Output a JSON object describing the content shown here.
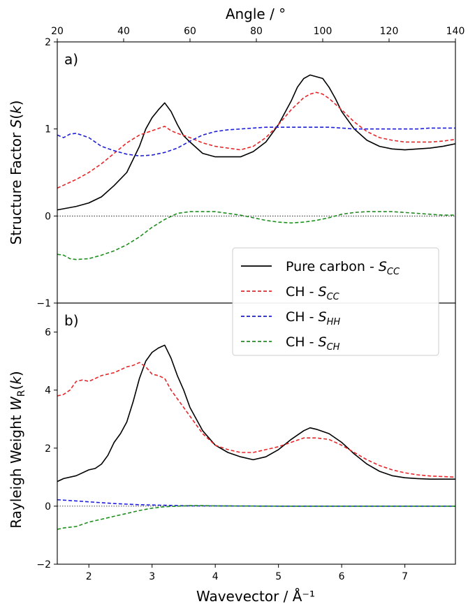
{
  "figure": {
    "top_axis_label": "Angle / °",
    "x_axis_label": "Wavevector / Å⁻¹",
    "x_ticks": [
      "2",
      "3",
      "4",
      "5",
      "6",
      "7"
    ],
    "top_ticks": [
      "20",
      "40",
      "60",
      "80",
      "100",
      "120",
      "140"
    ]
  },
  "legend": [
    {
      "name": "Pure carbon - ",
      "sub_main": "S",
      "sub": "CC",
      "color": "#000000",
      "dash": "solid"
    },
    {
      "name": "CH - ",
      "sub_main": "S",
      "sub": "CC",
      "color": "#e8262a",
      "dash": "dashed"
    },
    {
      "name": "CH - ",
      "sub_main": "S",
      "sub": "HH",
      "color": "#1f1fd6",
      "dash": "dashed"
    },
    {
      "name": "CH - ",
      "sub_main": "S",
      "sub": "CH",
      "color": "#1e8f1e",
      "dash": "dashed"
    }
  ],
  "chart_data": [
    {
      "type": "line",
      "panel_label": "a)",
      "ylabel": "Structure Factor S(k)",
      "xlim": [
        1.5,
        7.8
      ],
      "ylim": [
        -1,
        2
      ],
      "yticks": [
        "−1",
        "0",
        "1",
        "2"
      ],
      "reference_line": 0,
      "series": [
        {
          "name": "Pure carbon - S_CC",
          "color": "#000000",
          "dash": "solid",
          "x": [
            1.5,
            1.8,
            2.0,
            2.2,
            2.4,
            2.6,
            2.8,
            2.9,
            3.0,
            3.1,
            3.2,
            3.3,
            3.4,
            3.5,
            3.6,
            3.8,
            4.0,
            4.2,
            4.4,
            4.6,
            4.8,
            5.0,
            5.2,
            5.3,
            5.4,
            5.5,
            5.6,
            5.7,
            5.8,
            5.9,
            6.0,
            6.2,
            6.4,
            6.6,
            6.8,
            7.0,
            7.2,
            7.4,
            7.6,
            7.8
          ],
          "y": [
            0.07,
            0.11,
            0.15,
            0.22,
            0.35,
            0.5,
            0.8,
            1.0,
            1.13,
            1.22,
            1.3,
            1.2,
            1.05,
            0.92,
            0.85,
            0.72,
            0.68,
            0.68,
            0.68,
            0.74,
            0.85,
            1.05,
            1.32,
            1.48,
            1.58,
            1.62,
            1.6,
            1.58,
            1.48,
            1.35,
            1.2,
            1.0,
            0.87,
            0.8,
            0.77,
            0.76,
            0.77,
            0.78,
            0.8,
            0.83
          ]
        },
        {
          "name": "CH - S_CC",
          "color": "#e8262a",
          "dash": "dashed",
          "x": [
            1.5,
            1.8,
            2.0,
            2.2,
            2.4,
            2.6,
            2.8,
            3.0,
            3.2,
            3.3,
            3.4,
            3.6,
            3.8,
            4.0,
            4.2,
            4.4,
            4.6,
            4.8,
            5.0,
            5.2,
            5.4,
            5.5,
            5.6,
            5.7,
            5.8,
            6.0,
            6.2,
            6.4,
            6.6,
            6.8,
            7.0,
            7.2,
            7.4,
            7.6,
            7.8
          ],
          "y": [
            0.32,
            0.42,
            0.5,
            0.6,
            0.72,
            0.84,
            0.93,
            0.98,
            1.03,
            0.98,
            0.95,
            0.9,
            0.84,
            0.8,
            0.78,
            0.76,
            0.8,
            0.9,
            1.05,
            1.22,
            1.36,
            1.4,
            1.42,
            1.4,
            1.35,
            1.22,
            1.08,
            0.97,
            0.9,
            0.87,
            0.85,
            0.85,
            0.85,
            0.86,
            0.88
          ]
        },
        {
          "name": "CH - S_HH",
          "color": "#1f1fd6",
          "dash": "dashed",
          "x": [
            1.5,
            1.6,
            1.7,
            1.8,
            2.0,
            2.2,
            2.4,
            2.6,
            2.8,
            3.0,
            3.2,
            3.4,
            3.6,
            3.8,
            4.0,
            4.2,
            4.4,
            4.6,
            4.8,
            5.0,
            5.2,
            5.4,
            5.6,
            5.8,
            6.0,
            6.2,
            6.4,
            6.6,
            6.8,
            7.0,
            7.2,
            7.4,
            7.6,
            7.8
          ],
          "y": [
            0.93,
            0.9,
            0.94,
            0.95,
            0.9,
            0.8,
            0.75,
            0.71,
            0.69,
            0.7,
            0.73,
            0.78,
            0.86,
            0.93,
            0.97,
            0.99,
            1.0,
            1.01,
            1.02,
            1.02,
            1.02,
            1.02,
            1.02,
            1.02,
            1.01,
            1.0,
            1.0,
            1.0,
            1.0,
            1.0,
            1.0,
            1.01,
            1.01,
            1.01
          ]
        },
        {
          "name": "CH - S_CH",
          "color": "#1e8f1e",
          "dash": "dashed",
          "x": [
            1.5,
            1.6,
            1.7,
            1.8,
            2.0,
            2.2,
            2.4,
            2.6,
            2.8,
            3.0,
            3.2,
            3.4,
            3.6,
            3.8,
            4.0,
            4.2,
            4.4,
            4.6,
            4.8,
            5.0,
            5.2,
            5.4,
            5.6,
            5.8,
            6.0,
            6.2,
            6.4,
            6.6,
            6.8,
            7.0,
            7.2,
            7.4,
            7.6,
            7.8
          ],
          "y": [
            -0.44,
            -0.45,
            -0.49,
            -0.5,
            -0.49,
            -0.45,
            -0.4,
            -0.33,
            -0.24,
            -0.13,
            -0.04,
            0.03,
            0.05,
            0.05,
            0.05,
            0.03,
            0.01,
            -0.02,
            -0.05,
            -0.07,
            -0.08,
            -0.07,
            -0.05,
            -0.02,
            0.02,
            0.04,
            0.05,
            0.05,
            0.05,
            0.04,
            0.03,
            0.02,
            0.01,
            0.01
          ]
        }
      ]
    },
    {
      "type": "line",
      "panel_label": "b)",
      "ylabel": "Rayleigh Weight W_R(k)",
      "xlim": [
        1.5,
        7.8
      ],
      "ylim": [
        -2,
        7
      ],
      "yticks": [
        "−2",
        "0",
        "2",
        "4",
        "6"
      ],
      "reference_line": 0,
      "series": [
        {
          "name": "Pure carbon - S_CC",
          "color": "#000000",
          "dash": "solid",
          "x": [
            1.5,
            1.6,
            1.8,
            2.0,
            2.1,
            2.2,
            2.3,
            2.4,
            2.5,
            2.6,
            2.7,
            2.8,
            2.9,
            3.0,
            3.1,
            3.2,
            3.3,
            3.4,
            3.5,
            3.6,
            3.8,
            4.0,
            4.2,
            4.4,
            4.6,
            4.8,
            5.0,
            5.2,
            5.4,
            5.5,
            5.6,
            5.8,
            6.0,
            6.2,
            6.4,
            6.6,
            6.8,
            7.0,
            7.2,
            7.4,
            7.6,
            7.8
          ],
          "y": [
            0.85,
            0.95,
            1.05,
            1.25,
            1.3,
            1.45,
            1.75,
            2.2,
            2.5,
            2.9,
            3.6,
            4.4,
            5.0,
            5.3,
            5.45,
            5.55,
            5.1,
            4.5,
            4.0,
            3.4,
            2.6,
            2.1,
            1.85,
            1.7,
            1.6,
            1.7,
            1.95,
            2.3,
            2.6,
            2.7,
            2.65,
            2.5,
            2.2,
            1.8,
            1.45,
            1.2,
            1.05,
            0.98,
            0.95,
            0.93,
            0.93,
            0.93
          ]
        },
        {
          "name": "CH - S_CC",
          "color": "#e8262a",
          "dash": "dashed",
          "x": [
            1.5,
            1.6,
            1.7,
            1.8,
            1.9,
            2.0,
            2.2,
            2.4,
            2.6,
            2.7,
            2.8,
            2.9,
            3.0,
            3.1,
            3.2,
            3.3,
            3.4,
            3.6,
            3.8,
            4.0,
            4.2,
            4.4,
            4.6,
            4.8,
            5.0,
            5.2,
            5.4,
            5.6,
            5.8,
            6.0,
            6.2,
            6.4,
            6.6,
            6.8,
            7.0,
            7.2,
            7.4,
            7.6,
            7.8
          ],
          "y": [
            3.8,
            3.85,
            4.0,
            4.3,
            4.35,
            4.3,
            4.5,
            4.6,
            4.8,
            4.85,
            4.95,
            4.8,
            4.55,
            4.5,
            4.4,
            4.0,
            3.7,
            3.1,
            2.5,
            2.1,
            1.95,
            1.85,
            1.85,
            1.95,
            2.05,
            2.2,
            2.35,
            2.35,
            2.3,
            2.1,
            1.85,
            1.6,
            1.4,
            1.25,
            1.15,
            1.08,
            1.04,
            1.02,
            1.0
          ]
        },
        {
          "name": "CH - S_HH",
          "color": "#1f1fd6",
          "dash": "dashed",
          "x": [
            1.5,
            1.8,
            2.0,
            2.2,
            2.4,
            2.6,
            2.8,
            3.0,
            3.2,
            3.4,
            3.6,
            4.0,
            5.0,
            6.0,
            7.0,
            7.8
          ],
          "y": [
            0.22,
            0.18,
            0.15,
            0.12,
            0.09,
            0.07,
            0.05,
            0.04,
            0.03,
            0.02,
            0.01,
            0.01,
            0.0,
            0.0,
            0.0,
            0.0
          ]
        },
        {
          "name": "CH - S_CH",
          "color": "#1e8f1e",
          "dash": "dashed",
          "x": [
            1.5,
            1.6,
            1.8,
            2.0,
            2.2,
            2.4,
            2.6,
            2.8,
            3.0,
            3.2,
            3.4,
            3.6,
            3.8,
            4.0,
            5.0,
            6.0,
            7.0,
            7.8
          ],
          "y": [
            -0.8,
            -0.75,
            -0.7,
            -0.55,
            -0.45,
            -0.35,
            -0.25,
            -0.15,
            -0.07,
            -0.02,
            0.0,
            0.02,
            0.02,
            0.01,
            0.0,
            0.0,
            0.0,
            0.0
          ]
        }
      ]
    }
  ]
}
